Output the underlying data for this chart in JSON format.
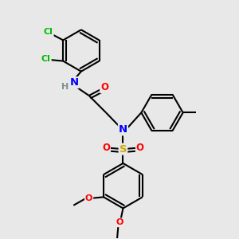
{
  "background_color": "#e8e8e8",
  "bond_color": "#000000",
  "bond_width": 1.5,
  "atom_colors": {
    "N": "#0000ff",
    "O": "#ff0000",
    "S": "#ccaa00",
    "Cl": "#00bb00",
    "H_label": "#7a9090",
    "C": "#000000"
  }
}
